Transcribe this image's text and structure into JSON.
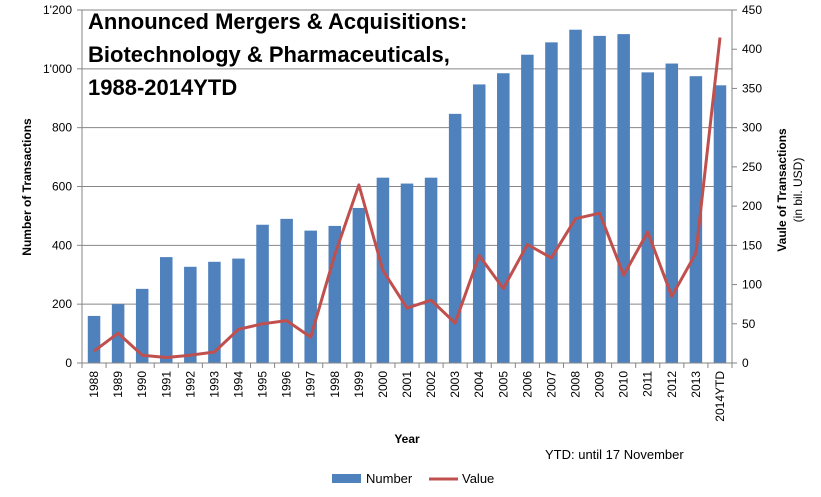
{
  "chart_data": {
    "type": "bar",
    "title_lines": [
      "Announced Mergers & Acquisitions:",
      "Biotechnology & Pharmaceuticals,",
      "1988-2014YTD"
    ],
    "categories": [
      "1988",
      "1989",
      "1990",
      "1991",
      "1992",
      "1993",
      "1994",
      "1995",
      "1996",
      "1997",
      "1998",
      "1999",
      "2000",
      "2001",
      "2002",
      "2003",
      "2004",
      "2005",
      "2006",
      "2007",
      "2008",
      "2009",
      "2010",
      "2011",
      "2012",
      "2013",
      "2014YTD"
    ],
    "series": [
      {
        "name": "Number",
        "type": "bar",
        "axis": "left",
        "color": "#4f81bd",
        "values": [
          160,
          200,
          252,
          360,
          327,
          344,
          355,
          470,
          490,
          450,
          466,
          527,
          630,
          610,
          630,
          847,
          947,
          985,
          1048,
          1090,
          1133,
          1112,
          1118,
          988,
          1018,
          975,
          944
        ]
      },
      {
        "name": "Value",
        "type": "line",
        "axis": "right",
        "color": "#c0504d",
        "values": [
          15,
          38,
          10,
          7,
          10,
          14,
          43,
          50,
          54,
          33,
          138,
          227,
          118,
          70,
          80,
          51,
          137,
          95,
          151,
          134,
          184,
          191,
          112,
          167,
          85,
          140,
          415
        ]
      }
    ],
    "xlabel": "Year",
    "ylabel_left": "Number of Transactions",
    "ylabel_right": "Vaule of Transactions",
    "ylabel_right_unit": "(in bil. USD)",
    "ylim_left": [
      0,
      1200
    ],
    "ylim_right": [
      0,
      450
    ],
    "yticks_left": [
      "0",
      "200",
      "400",
      "600",
      "800",
      "1'000",
      "1'200"
    ],
    "yticks_right": [
      "0",
      "50",
      "100",
      "150",
      "200",
      "250",
      "300",
      "350",
      "400",
      "450"
    ],
    "grid": true,
    "legend_position": "bottom",
    "note": "YTD: until 17 November"
  }
}
